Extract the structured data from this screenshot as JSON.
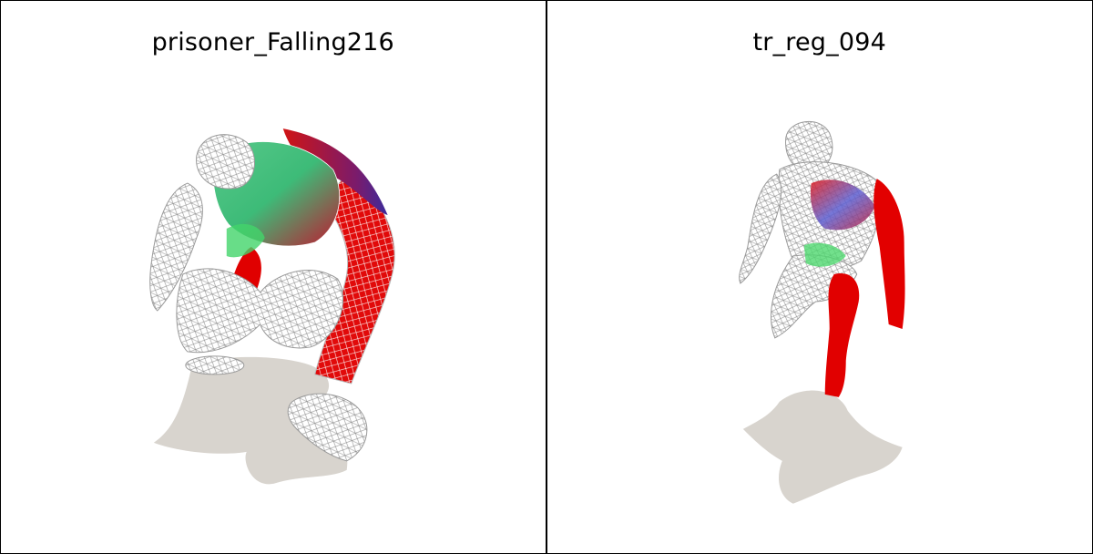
{
  "panels": [
    {
      "title": "prisoner_Falling216"
    },
    {
      "title": "tr_reg_094"
    }
  ],
  "colors": {
    "background": "#ffffff",
    "divider": "#000000",
    "shadow": "#d9d5cf",
    "wireframe": "#9a9a9a",
    "mesh_red": "#e00000",
    "mesh_green": "#3ad35f",
    "mesh_blue": "#3b3bb5"
  },
  "icons": [
    "wireframe-mesh-figure",
    "ground-shadow"
  ]
}
